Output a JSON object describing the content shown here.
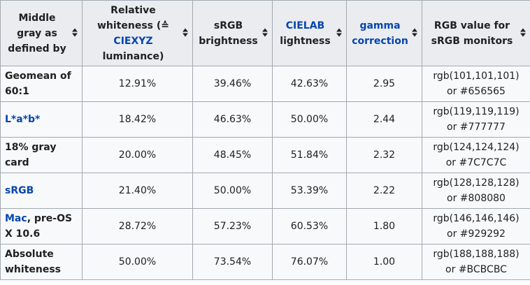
{
  "headers": [
    {
      "parts": [
        {
          "text": "Middle gray as defined by",
          "link": false
        }
      ]
    },
    {
      "parts": [
        {
          "text": "Relative whiteness (≙ ",
          "link": false
        },
        {
          "text": "CIEXYZ",
          "link": true
        },
        {
          "text": " luminance)",
          "link": false
        }
      ]
    },
    {
      "parts": [
        {
          "text": "sRGB brightness",
          "link": false
        }
      ]
    },
    {
      "parts": [
        {
          "text": "CIELAB",
          "link": true
        },
        {
          "text": " lightness",
          "link": false
        }
      ]
    },
    {
      "parts": [
        {
          "text": "gamma correction",
          "link": true
        }
      ]
    },
    {
      "parts": [
        {
          "text": "RGB value for sRGB monitors",
          "link": false
        }
      ]
    }
  ],
  "sort_icon": "sort-arrows-icon",
  "sort_glyph": "▲▼",
  "rows": [
    {
      "label_parts": [
        {
          "text": "Geomean of 60:1",
          "link": false
        }
      ],
      "whiteness": "12.91%",
      "brightness": "39.46%",
      "lightness": "42.63%",
      "gamma": "2.95",
      "rgb": "rgb(101,101,101) or #656565"
    },
    {
      "label_parts": [
        {
          "text": "L*a*b*",
          "link": true
        }
      ],
      "whiteness": "18.42%",
      "brightness": "46.63%",
      "lightness": "50.00%",
      "gamma": "2.44",
      "rgb": "rgb(119,119,119) or #777777"
    },
    {
      "label_parts": [
        {
          "text": "18% gray card",
          "link": false
        }
      ],
      "whiteness": "20.00%",
      "brightness": "48.45%",
      "lightness": "51.84%",
      "gamma": "2.32",
      "rgb": "rgb(124,124,124) or #7C7C7C"
    },
    {
      "label_parts": [
        {
          "text": "sRGB",
          "link": true
        }
      ],
      "whiteness": "21.40%",
      "brightness": "50.00%",
      "lightness": "53.39%",
      "gamma": "2.22",
      "rgb": "rgb(128,128,128) or #808080"
    },
    {
      "label_parts": [
        {
          "text": "Mac",
          "link": true
        },
        {
          "text": ", pre-OS X 10.6",
          "link": false
        }
      ],
      "whiteness": "28.72%",
      "brightness": "57.23%",
      "lightness": "60.53%",
      "gamma": "1.80",
      "rgb": "rgb(146,146,146) or #929292"
    },
    {
      "label_parts": [
        {
          "text": "Absolute whiteness",
          "link": false
        }
      ],
      "whiteness": "50.00%",
      "brightness": "73.54%",
      "lightness": "76.07%",
      "gamma": "1.00",
      "rgb": "rgb(188,188,188) or #BCBCBC"
    }
  ],
  "colors": {
    "link": "#0645ad",
    "header_bg": "#eaecf0",
    "cell_bg": "#f8f9fa",
    "border": "#a2a9b1"
  }
}
